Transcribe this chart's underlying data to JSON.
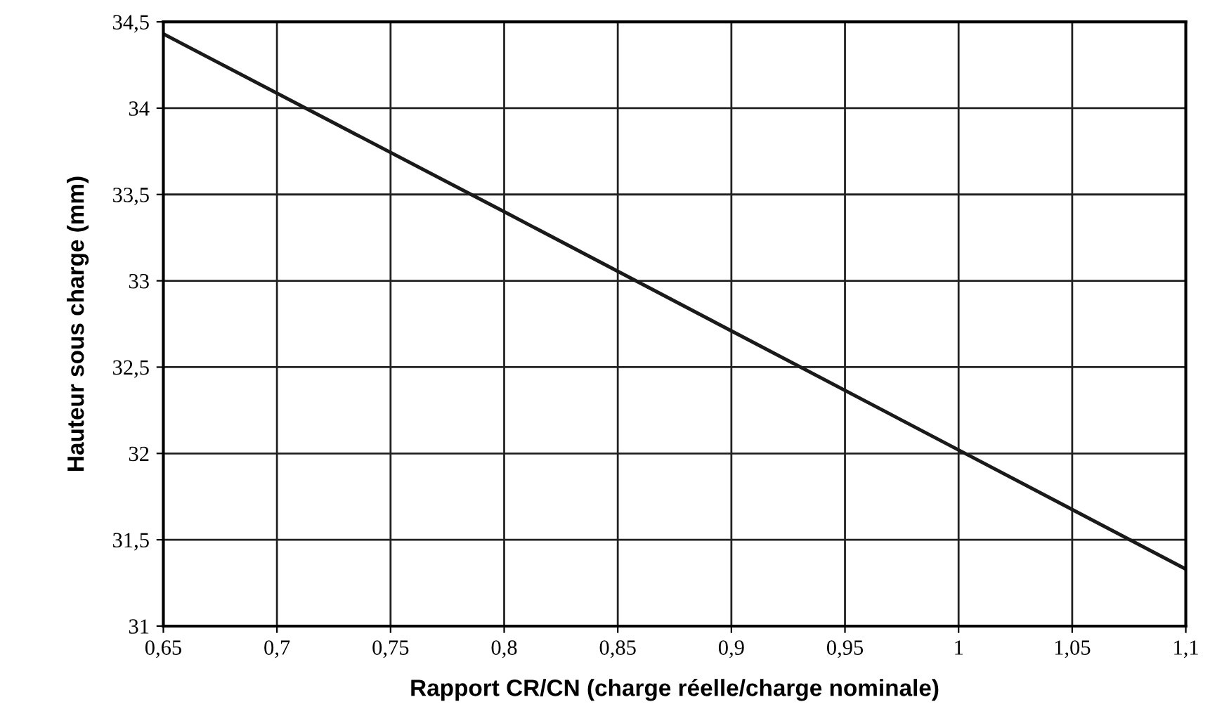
{
  "chart_data": {
    "type": "line",
    "xlabel": "Rapport CR/CN (charge réelle/charge nominale)",
    "ylabel": "Hauteur sous charge (mm)",
    "x": [
      0.65,
      0.8,
      1.0,
      1.1
    ],
    "series": [
      {
        "color": "#1a1a1a",
        "values": [
          34.43,
          33.4,
          32.02,
          31.33
        ]
      }
    ],
    "xlim": [
      0.65,
      1.1
    ],
    "ylim": [
      31,
      34.5
    ],
    "xticks": [
      {
        "value": 0.65,
        "label": "0,65"
      },
      {
        "value": 0.7,
        "label": "0,7"
      },
      {
        "value": 0.75,
        "label": "0,75"
      },
      {
        "value": 0.8,
        "label": "0,8"
      },
      {
        "value": 0.85,
        "label": "0,85"
      },
      {
        "value": 0.9,
        "label": "0,9"
      },
      {
        "value": 0.95,
        "label": "0,95"
      },
      {
        "value": 1,
        "label": "1"
      },
      {
        "value": 1.05,
        "label": "1,05"
      },
      {
        "value": 1.1,
        "label": "1,1"
      }
    ],
    "yticks": [
      31,
      {
        "value": 31.5,
        "label": "31,5"
      },
      32,
      {
        "value": 32.5,
        "label": "32,5"
      },
      33,
      {
        "value": 33.5,
        "label": "33,5"
      },
      34,
      {
        "value": 34.5,
        "label": "34,5"
      }
    ],
    "grid": true,
    "marker": "none",
    "line_style": "solid"
  }
}
